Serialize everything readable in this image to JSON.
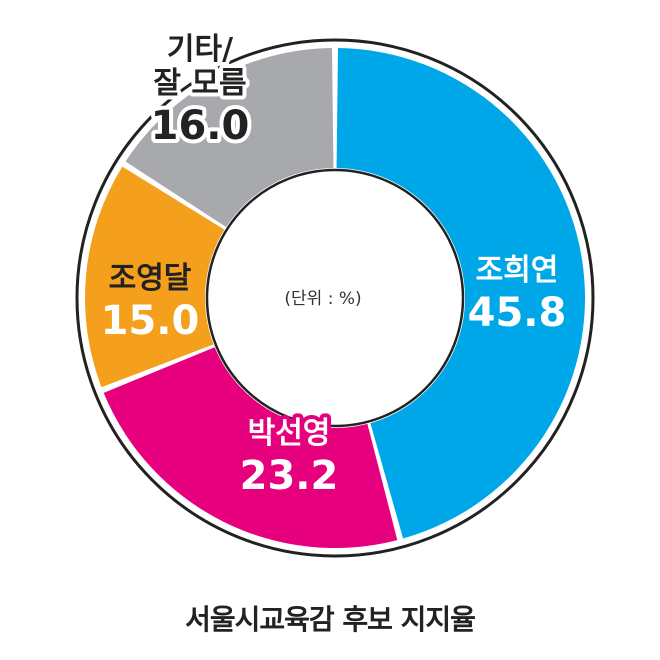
{
  "caption": "서울시교육감 후보 지지율",
  "chart_data": {
    "type": "pie",
    "variant": "donut",
    "title": "서울시교육감 후보 지지율",
    "unit_label": "(단위 : %)",
    "slices": [
      {
        "label": "조희연",
        "value": 45.8,
        "value_text": "45.8",
        "color": "#00a7e8",
        "label_color": "#ffffff",
        "label_outline": "none"
      },
      {
        "label": "박선영",
        "value": 23.2,
        "value_text": "23.2",
        "color": "#e6007e",
        "label_color": "#ffffff",
        "label_outline": "#e6007e"
      },
      {
        "label": "조영달",
        "value": 15.0,
        "value_text": "15.0",
        "color": "#f5a01c",
        "label_color": "#222222",
        "label_outline": "none",
        "value_color": "#ffffff",
        "value_outline": "#f5a01c"
      },
      {
        "label": "기타/\n잘 모름",
        "value": 16.0,
        "value_text": "16.0",
        "color": "#a7a9ac",
        "label_color": "#222222",
        "label_outline": "#ffffff"
      }
    ],
    "ring_color": "#ffffff",
    "outline_color": "#222222",
    "start": "top, clockwise"
  }
}
